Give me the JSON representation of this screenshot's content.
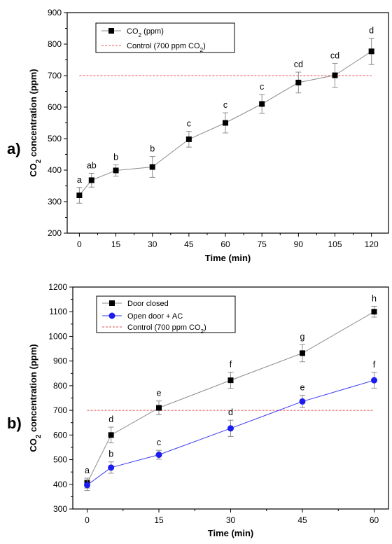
{
  "chart_data": [
    {
      "type": "line",
      "panel_label": "a)",
      "xlabel": "Time (min)",
      "ylabel": {
        "main": "CO",
        "sub": "2",
        "rest": " concentration (ppm)"
      },
      "xlim": [
        -5,
        127
      ],
      "ylim": [
        200,
        900
      ],
      "x_ticks": [
        0,
        15,
        30,
        45,
        60,
        75,
        90,
        105,
        120
      ],
      "y_ticks": [
        200,
        300,
        400,
        500,
        600,
        700,
        800,
        900
      ],
      "control": {
        "value": 700,
        "x_range": [
          0,
          120
        ],
        "legend": {
          "main": "Control (700 ppm CO",
          "sub": "2",
          "rest": ")"
        }
      },
      "legend_placement": "top-left",
      "series": [
        {
          "legend": {
            "main": "CO",
            "sub": "2",
            "rest": " (ppm)"
          },
          "marker": "square",
          "line_color": "#8c8c8c",
          "marker_color": "#000000",
          "x": [
            0,
            5,
            15,
            30,
            45,
            60,
            75,
            90,
            105,
            120
          ],
          "y": [
            320,
            368,
            399,
            410,
            498,
            550,
            610,
            678,
            701,
            777
          ],
          "error": [
            25,
            22,
            18,
            33,
            25,
            32,
            30,
            33,
            38,
            42
          ],
          "labels": [
            "a",
            "ab",
            "b",
            "b",
            "c",
            "c",
            "c",
            "cd",
            "cd",
            "d"
          ]
        }
      ]
    },
    {
      "type": "line",
      "panel_label": "b)",
      "xlabel": "Time (min)",
      "ylabel": {
        "main": "CO",
        "sub": "2",
        "rest": " concentration (ppm)"
      },
      "xlim": [
        -3,
        63
      ],
      "ylim": [
        300,
        1200
      ],
      "x_ticks": [
        0,
        15,
        30,
        45,
        60
      ],
      "y_ticks": [
        300,
        400,
        500,
        600,
        700,
        800,
        900,
        1000,
        1100,
        1200
      ],
      "control": {
        "value": 700,
        "x_range": [
          0,
          60
        ],
        "legend": {
          "main": "Control (700 ppm CO",
          "sub": "2",
          "rest": ")"
        }
      },
      "legend_placement": "top-left",
      "series": [
        {
          "name": "Door closed",
          "marker": "square",
          "line_color": "#8c8c8c",
          "marker_color": "#000000",
          "x": [
            0,
            5,
            15,
            30,
            45,
            60
          ],
          "y": [
            405,
            600,
            710,
            822,
            932,
            1100
          ],
          "error": [
            20,
            32,
            28,
            33,
            35,
            22
          ],
          "labels": [
            "a",
            "d",
            "e",
            "f",
            "g",
            "h"
          ]
        },
        {
          "name": "Open door + AC",
          "marker": "circle",
          "line_color": "#3b3bf0",
          "marker_color": "#1c1cf0",
          "x": [
            0,
            5,
            15,
            30,
            45,
            60
          ],
          "y": [
            397,
            468,
            520,
            627,
            736,
            822
          ],
          "error": [
            22,
            23,
            18,
            33,
            25,
            32
          ],
          "labels": [
            "",
            "b",
            "c",
            "d",
            "e",
            "f"
          ]
        }
      ]
    }
  ],
  "colors": {
    "control_line": "#e05050",
    "error_bar": "#8c8c8c",
    "axis": "#000000"
  }
}
